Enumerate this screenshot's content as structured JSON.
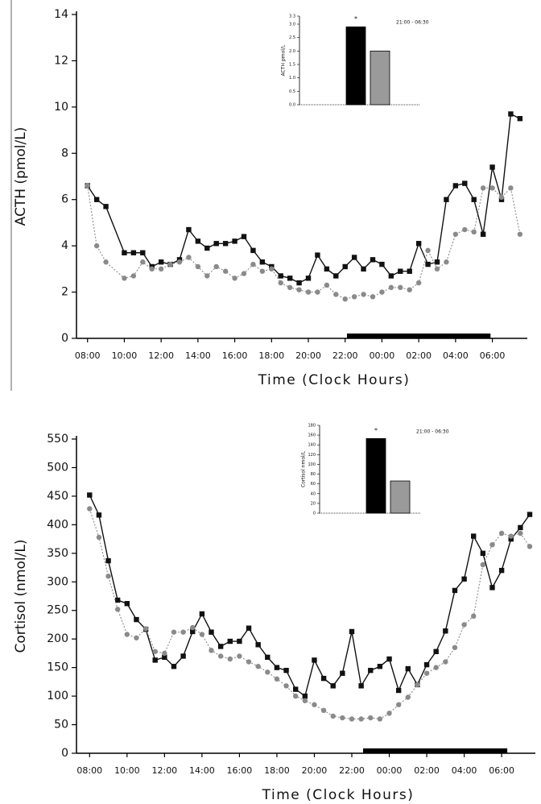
{
  "chart_data": [
    {
      "type": "line",
      "xlabel": "Time (Clock Hours)",
      "ylabel": "ACTH (pmol/L)",
      "x": [
        8,
        8.5,
        9,
        10,
        10.5,
        11,
        11.5,
        12,
        12.5,
        13,
        13.5,
        14,
        14.5,
        15,
        15.5,
        16,
        16.5,
        17,
        17.5,
        18,
        18.5,
        19,
        19.5,
        20,
        20.5,
        21,
        21.5,
        22,
        22.5,
        23,
        23.5,
        24,
        24.5,
        25,
        25.5,
        26,
        26.5,
        27,
        27.5,
        28,
        28.5,
        29,
        29.5,
        30,
        30.5,
        31,
        31.5
      ],
      "series": [
        {
          "color": "#111111",
          "values": [
            6.6,
            6.0,
            5.7,
            3.7,
            3.7,
            3.7,
            3.1,
            3.3,
            3.2,
            3.4,
            4.7,
            4.2,
            3.9,
            4.1,
            4.1,
            4.2,
            4.4,
            3.8,
            3.3,
            3.1,
            2.7,
            2.6,
            2.4,
            2.6,
            3.6,
            3.0,
            2.7,
            3.1,
            3.5,
            3.0,
            3.4,
            3.2,
            2.7,
            2.9,
            2.9,
            4.1,
            3.2,
            3.3,
            6.0,
            6.6,
            6.7,
            6.0,
            4.5,
            7.4,
            6.0,
            9.7,
            9.5
          ]
        },
        {
          "color": "#8a8a8a",
          "values": [
            6.6,
            4.0,
            3.3,
            2.6,
            2.7,
            3.3,
            3.0,
            3.0,
            3.2,
            3.3,
            3.5,
            3.1,
            2.7,
            3.1,
            2.9,
            2.6,
            2.8,
            3.2,
            2.9,
            3.0,
            2.4,
            2.2,
            2.1,
            2.0,
            2.0,
            2.3,
            1.9,
            1.7,
            1.8,
            1.9,
            1.8,
            2.0,
            2.2,
            2.2,
            2.1,
            2.4,
            3.8,
            3.0,
            3.3,
            4.5,
            4.7,
            4.6,
            6.5,
            6.5,
            6.1,
            6.5,
            4.5
          ]
        }
      ],
      "xlim": [
        7.4,
        31.9
      ],
      "xticks": [
        {
          "value": 8,
          "label": "08:00"
        },
        {
          "value": 10,
          "label": "10:00"
        },
        {
          "value": 12,
          "label": "12:00"
        },
        {
          "value": 14,
          "label": "14:00"
        },
        {
          "value": 16,
          "label": "16:00"
        },
        {
          "value": 18,
          "label": "18:00"
        },
        {
          "value": 20,
          "label": "20:00"
        },
        {
          "value": 22,
          "label": "22:00"
        },
        {
          "value": 24,
          "label": "00:00"
        },
        {
          "value": 26,
          "label": "02:00"
        },
        {
          "value": 28,
          "label": "04:00"
        },
        {
          "value": 30,
          "label": "06:00"
        }
      ],
      "ylim": [
        0,
        14
      ],
      "yticks": [
        0,
        2,
        4,
        6,
        8,
        10,
        12,
        14
      ],
      "bar_span": [
        22.1,
        29.9
      ]
    },
    {
      "type": "bar",
      "ylabel": "ACTH pmol/L",
      "annotation": "21:00 - 06:30",
      "marker_text": "*",
      "values": [
        2.9,
        2.0
      ],
      "colors": [
        "#000000",
        "#9a9a9a"
      ],
      "ylim": [
        0,
        3.3
      ],
      "yticks": [
        {
          "value": 0,
          "label": "0.0"
        },
        0.5,
        {
          "value": 1,
          "label": "1.0"
        },
        1.5,
        {
          "value": 2,
          "label": "2.0"
        },
        2.5,
        {
          "value": 3,
          "label": "3.0"
        },
        3.3
      ]
    },
    {
      "type": "line",
      "xlabel": "Time (Clock Hours)",
      "ylabel": "Cortisol (nmol/L)",
      "x": [
        8,
        8.5,
        9,
        9.5,
        10,
        10.5,
        11,
        11.5,
        12,
        12.5,
        13,
        13.5,
        14,
        14.5,
        15,
        15.5,
        16,
        16.5,
        17,
        17.5,
        18,
        18.5,
        19,
        19.5,
        20,
        20.5,
        21,
        21.5,
        22,
        22.5,
        23,
        23.5,
        24,
        24.5,
        25,
        25.5,
        26,
        26.5,
        27,
        27.5,
        28,
        28.5,
        29,
        29.5,
        30,
        30.5,
        31,
        31.5
      ],
      "series": [
        {
          "color": "#111111",
          "values": [
            452,
            417,
            337,
            268,
            262,
            234,
            217,
            163,
            168,
            152,
            170,
            213,
            244,
            212,
            187,
            196,
            196,
            219,
            190,
            168,
            150,
            145,
            112,
            100,
            163,
            131,
            118,
            140,
            213,
            118,
            145,
            152,
            165,
            110,
            148,
            120,
            155,
            178,
            214,
            285,
            305,
            380,
            350,
            290,
            320,
            375,
            395,
            418
          ]
        },
        {
          "color": "#8a8a8a",
          "values": [
            428,
            378,
            310,
            252,
            208,
            202,
            218,
            178,
            175,
            212,
            212,
            220,
            208,
            180,
            170,
            165,
            170,
            160,
            152,
            142,
            130,
            118,
            100,
            92,
            85,
            75,
            65,
            62,
            60,
            60,
            62,
            60,
            70,
            85,
            98,
            120,
            140,
            150,
            160,
            185,
            225,
            240,
            330,
            365,
            385,
            380,
            385,
            362
          ]
        }
      ],
      "xlim": [
        7.3,
        31.8
      ],
      "xticks": [
        {
          "value": 8,
          "label": "08:00"
        },
        {
          "value": 10,
          "label": "10:00"
        },
        {
          "value": 12,
          "label": "12:00"
        },
        {
          "value": 14,
          "label": "14:00"
        },
        {
          "value": 16,
          "label": "16:00"
        },
        {
          "value": 18,
          "label": "18:00"
        },
        {
          "value": 20,
          "label": "20:00"
        },
        {
          "value": 22,
          "label": "22:00"
        },
        {
          "value": 24,
          "label": "00:00"
        },
        {
          "value": 26,
          "label": "02:00"
        },
        {
          "value": 28,
          "label": "04:00"
        },
        {
          "value": 30,
          "label": "06:00"
        }
      ],
      "ylim": [
        0,
        550
      ],
      "yticks": [
        0,
        50,
        100,
        150,
        200,
        250,
        300,
        350,
        400,
        450,
        500,
        550
      ],
      "bar_span": [
        22.6,
        30.3
      ]
    },
    {
      "type": "bar",
      "ylabel": "Cortisol nmol/L",
      "annotation": "21:00 - 06:30",
      "marker_text": "*",
      "values": [
        153,
        66
      ],
      "colors": [
        "#000000",
        "#9a9a9a"
      ],
      "ylim": [
        0,
        180
      ],
      "yticks": [
        0,
        20,
        40,
        60,
        80,
        100,
        120,
        140,
        160,
        180
      ]
    }
  ]
}
